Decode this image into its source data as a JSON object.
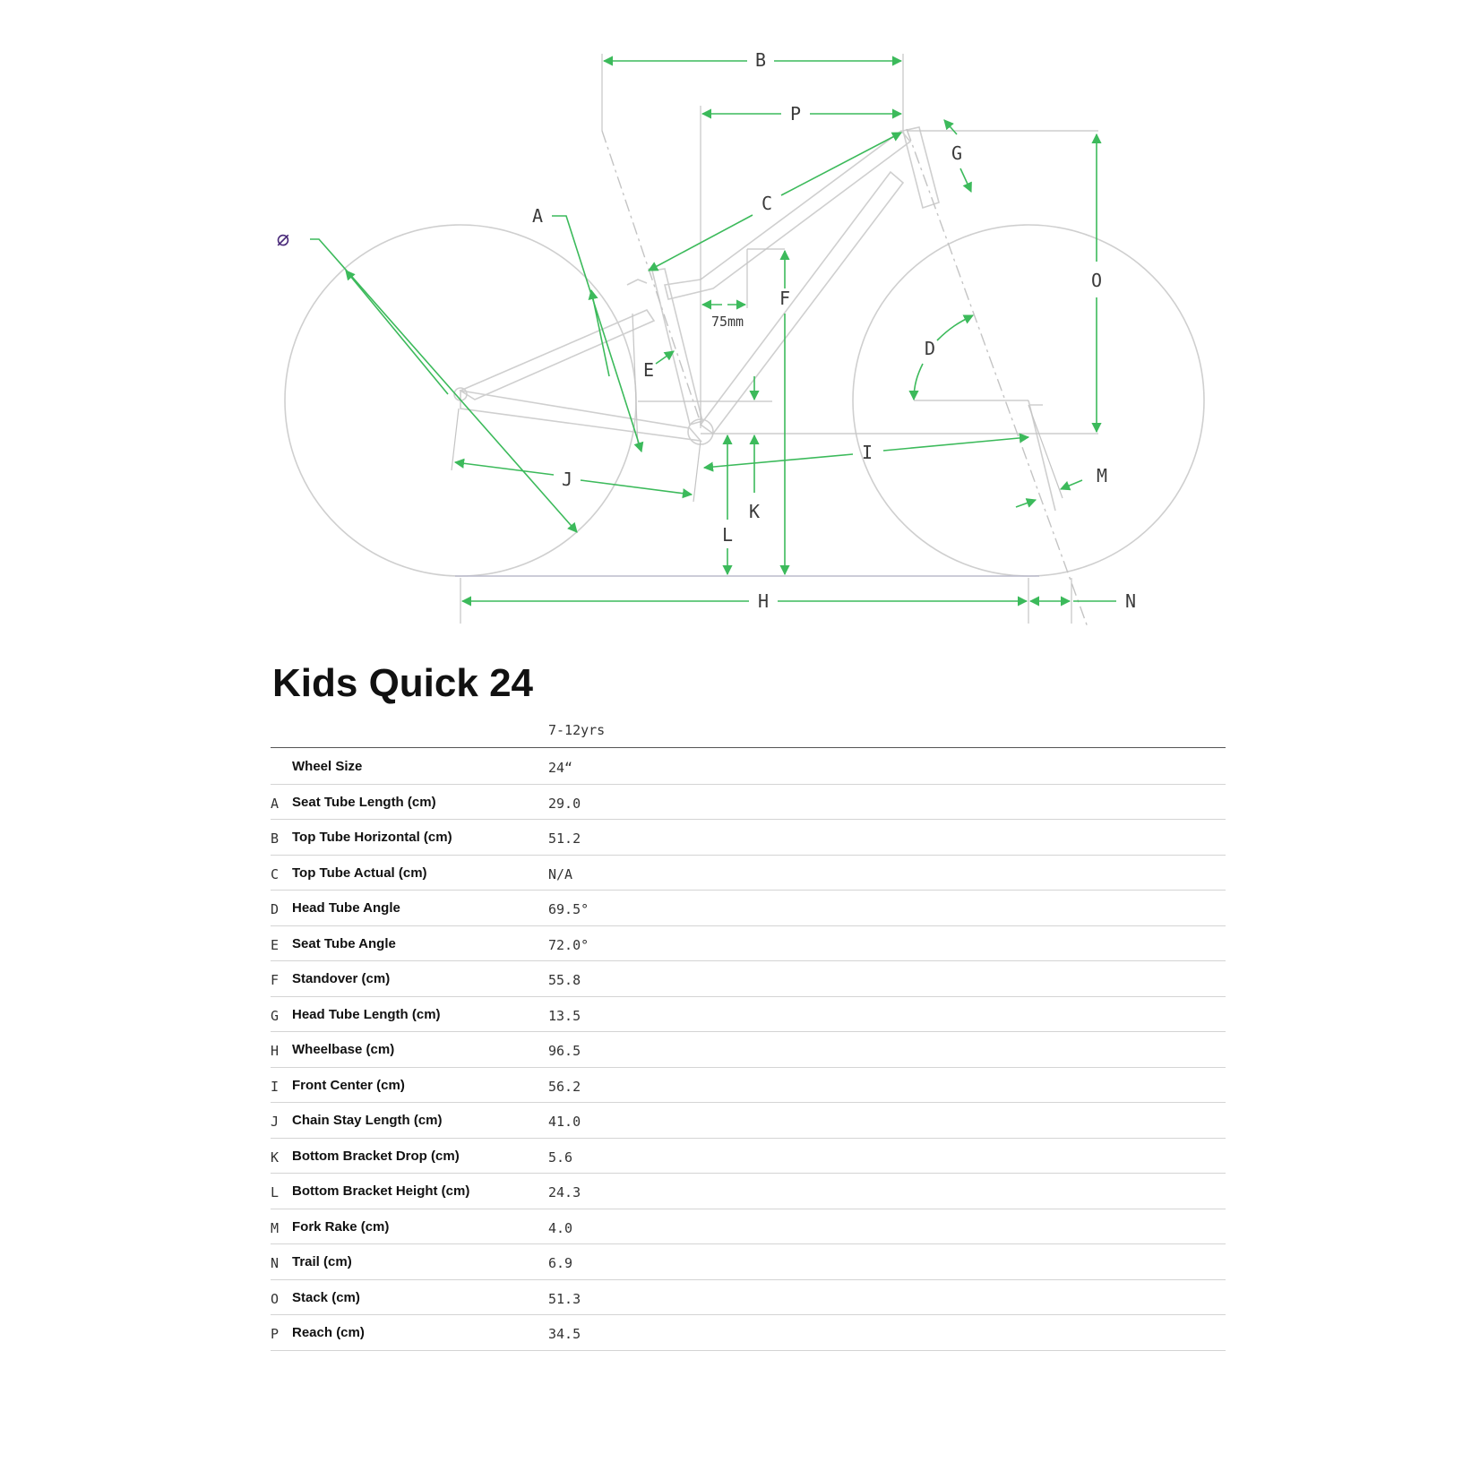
{
  "diagram": {
    "labels": {
      "A": "A",
      "B": "B",
      "C": "C",
      "D": "D",
      "E": "E",
      "F": "F",
      "G": "G",
      "H": "H",
      "I": "I",
      "J": "J",
      "K": "K",
      "L": "L",
      "M": "M",
      "N": "N",
      "O": "O",
      "P": "P",
      "phi": "⌀",
      "seat_offset": "75mm"
    },
    "colors": {
      "dimension": "#3cba5b",
      "frame": "#c8c8c8",
      "phi": "#4a2a7a"
    }
  },
  "title": "Kids Quick 24",
  "size_label": "7-12yrs",
  "rows": [
    {
      "letter": "",
      "label": "Wheel Size",
      "value": "24“"
    },
    {
      "letter": "A",
      "label": "Seat Tube Length (cm)",
      "value": "29.0"
    },
    {
      "letter": "B",
      "label": "Top Tube Horizontal (cm)",
      "value": "51.2"
    },
    {
      "letter": "C",
      "label": "Top Tube Actual (cm)",
      "value": "N/A"
    },
    {
      "letter": "D",
      "label": "Head Tube Angle",
      "value": "69.5°"
    },
    {
      "letter": "E",
      "label": "Seat Tube Angle",
      "value": "72.0°"
    },
    {
      "letter": "F",
      "label": "Standover (cm)",
      "value": "55.8"
    },
    {
      "letter": "G",
      "label": "Head Tube Length (cm)",
      "value": "13.5"
    },
    {
      "letter": "H",
      "label": "Wheelbase (cm)",
      "value": "96.5"
    },
    {
      "letter": "I",
      "label": "Front Center (cm)",
      "value": "56.2"
    },
    {
      "letter": "J",
      "label": "Chain Stay Length (cm)",
      "value": "41.0"
    },
    {
      "letter": "K",
      "label": "Bottom Bracket Drop (cm)",
      "value": "5.6"
    },
    {
      "letter": "L",
      "label": "Bottom Bracket Height (cm)",
      "value": "24.3"
    },
    {
      "letter": "M",
      "label": "Fork Rake (cm)",
      "value": "4.0"
    },
    {
      "letter": "N",
      "label": "Trail (cm)",
      "value": "6.9"
    },
    {
      "letter": "O",
      "label": "Stack (cm)",
      "value": "51.3"
    },
    {
      "letter": "P",
      "label": "Reach (cm)",
      "value": "34.5"
    }
  ]
}
